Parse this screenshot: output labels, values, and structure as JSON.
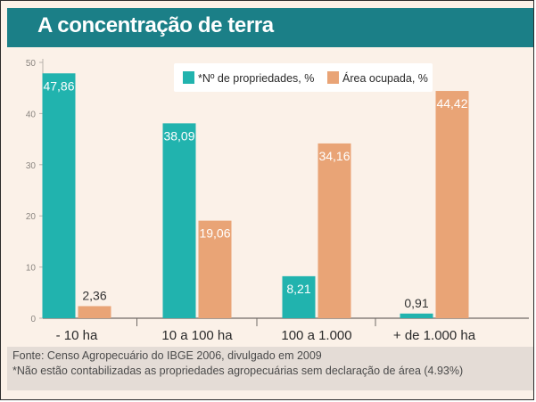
{
  "colors": {
    "title_bg": "#1b7f87",
    "series_teal": "#21b3ae",
    "series_orange": "#e9a476",
    "background": "#fbf1e8"
  },
  "chart_data": {
    "type": "bar",
    "title": "A concentração de terra",
    "categories": [
      "- 10 ha",
      "10 a 100 ha",
      "100 a 1.000",
      "+ de 1.000 ha"
    ],
    "series": [
      {
        "name": "*Nº de propriedades, %",
        "values": [
          47.86,
          38.09,
          8.21,
          0.91
        ],
        "labels": [
          "47,86",
          "38,09",
          "8,21",
          "0,91"
        ]
      },
      {
        "name": "Área ocupada, %",
        "values": [
          2.36,
          19.06,
          34.16,
          44.42
        ],
        "labels": [
          "2,36",
          "19,06",
          "34,16",
          "44,42"
        ]
      }
    ],
    "yticks": [
      "0",
      "10",
      "20",
      "30",
      "40",
      "50"
    ],
    "ylim": [
      0,
      50
    ],
    "legend_position": "top-center"
  },
  "footer": {
    "source": "Fonte: Censo Agropecuário do IBGE 2006, divulgado em 2009",
    "note": "*Não estão contabilizadas as propriedades agropecuárias sem declaração de área (4.93%)"
  }
}
